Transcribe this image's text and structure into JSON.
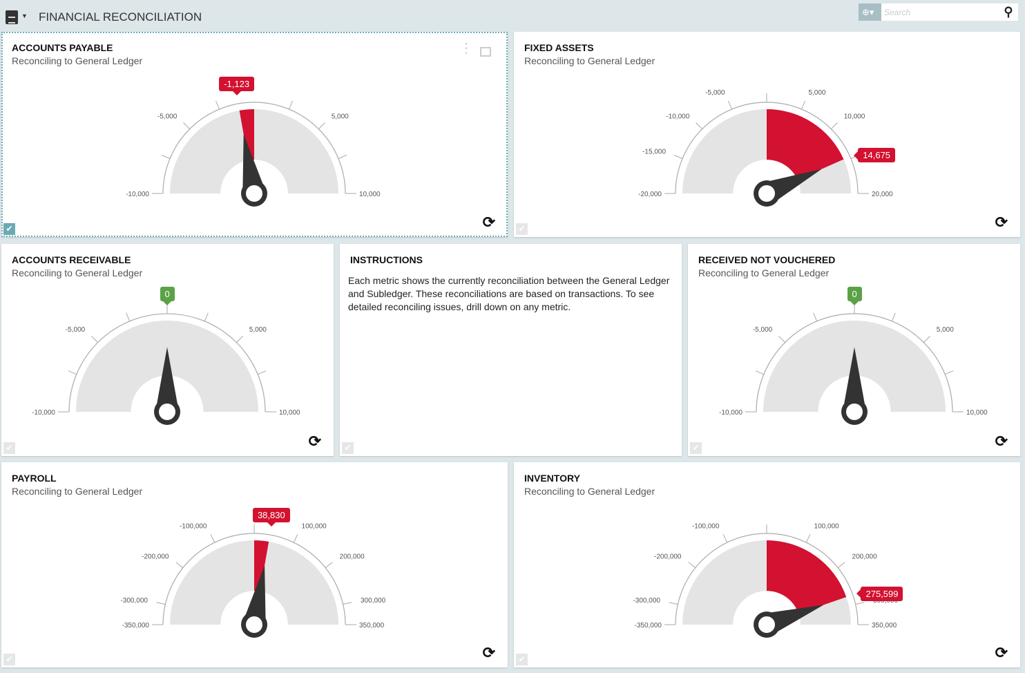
{
  "header": {
    "title": "FINANCIAL RECONCILIATION",
    "search_placeholder": "Search",
    "globe_icon": "globe-icon"
  },
  "colors": {
    "red": "#d31130",
    "green": "#5ba145",
    "needle": "#333333",
    "band": "#e4e4e4"
  },
  "instructions": {
    "title": "INSTRUCTIONS",
    "text": "Each metric shows the currently reconciliation between the General Ledger and Subledger.  These reconciliations are based on transactions.  To see detailed reconciling issues, drill down on any metric."
  },
  "gauges": [
    {
      "title": "ACCOUNTS PAYABLE",
      "subtitle": "Reconciling to General Ledger",
      "min": -10000,
      "max": 10000,
      "value": -1123,
      "value_label": "-1,123",
      "status": "red",
      "ticks": [
        -7500,
        -5000,
        -2500,
        2500,
        5000,
        7500
      ],
      "labels": [
        {
          "v": -10000,
          "t": "-10,000"
        },
        {
          "v": -5000,
          "t": "-5,000"
        },
        {
          "v": 5000,
          "t": "5,000"
        },
        {
          "v": 10000,
          "t": "10,000"
        }
      ]
    },
    {
      "title": "FIXED ASSETS",
      "subtitle": "Reconciling to General Ledger",
      "min": -20000,
      "max": 20000,
      "value": 14675,
      "value_label": "14,675",
      "status": "red",
      "ticks": [
        -15000,
        -10000,
        -5000,
        0,
        5000,
        10000,
        15000
      ],
      "labels": [
        {
          "v": -20000,
          "t": "-20,000"
        },
        {
          "v": -15000,
          "t": "-15,000"
        },
        {
          "v": -10000,
          "t": "-10,000"
        },
        {
          "v": -5000,
          "t": "-5,000"
        },
        {
          "v": 5000,
          "t": "5,000"
        },
        {
          "v": 10000,
          "t": "10,000"
        },
        {
          "v": 20000,
          "t": "20,000"
        }
      ]
    },
    {
      "title": "ACCOUNTS RECEIVABLE",
      "subtitle": "Reconciling to General Ledger",
      "min": -10000,
      "max": 10000,
      "value": 0,
      "value_label": "0",
      "status": "green",
      "ticks": [
        -7500,
        -5000,
        -2500,
        0,
        2500,
        5000,
        7500
      ],
      "labels": [
        {
          "v": -10000,
          "t": "-10,000"
        },
        {
          "v": -5000,
          "t": "-5,000"
        },
        {
          "v": 5000,
          "t": "5,000"
        },
        {
          "v": 10000,
          "t": "10,000"
        }
      ]
    },
    {
      "title": "RECEIVED NOT VOUCHERED",
      "subtitle": "Reconciling to General Ledger",
      "min": -10000,
      "max": 10000,
      "value": 0,
      "value_label": "0",
      "status": "green",
      "ticks": [
        -7500,
        -5000,
        -2500,
        0,
        2500,
        5000,
        7500
      ],
      "labels": [
        {
          "v": -10000,
          "t": "-10,000"
        },
        {
          "v": -5000,
          "t": "-5,000"
        },
        {
          "v": 5000,
          "t": "5,000"
        },
        {
          "v": 10000,
          "t": "10,000"
        }
      ]
    },
    {
      "title": "PAYROLL",
      "subtitle": "Reconciling to General Ledger",
      "min": -350000,
      "max": 350000,
      "value": 38830,
      "value_label": "38,830",
      "status": "red",
      "ticks": [
        -300000,
        -200000,
        -100000,
        0,
        100000,
        200000,
        300000
      ],
      "labels": [
        {
          "v": -350000,
          "t": "-350,000"
        },
        {
          "v": -300000,
          "t": "-300,000"
        },
        {
          "v": -200000,
          "t": "-200,000"
        },
        {
          "v": -100000,
          "t": "-100,000"
        },
        {
          "v": 100000,
          "t": "100,000"
        },
        {
          "v": 200000,
          "t": "200,000"
        },
        {
          "v": 300000,
          "t": "300,000"
        },
        {
          "v": 350000,
          "t": "350,000"
        }
      ]
    },
    {
      "title": "INVENTORY",
      "subtitle": "Reconciling to General Ledger",
      "min": -350000,
      "max": 350000,
      "value": 275599,
      "value_label": "275,599",
      "status": "red",
      "ticks": [
        -300000,
        -200000,
        -100000,
        0,
        100000,
        200000,
        300000
      ],
      "labels": [
        {
          "v": -350000,
          "t": "-350,000"
        },
        {
          "v": -300000,
          "t": "-300,000"
        },
        {
          "v": -200000,
          "t": "-200,000"
        },
        {
          "v": -100000,
          "t": "-100,000"
        },
        {
          "v": 100000,
          "t": "100,000"
        },
        {
          "v": 200000,
          "t": "200,000"
        },
        {
          "v": 300000,
          "t": "300,000"
        },
        {
          "v": 350000,
          "t": "350,000"
        }
      ]
    }
  ]
}
